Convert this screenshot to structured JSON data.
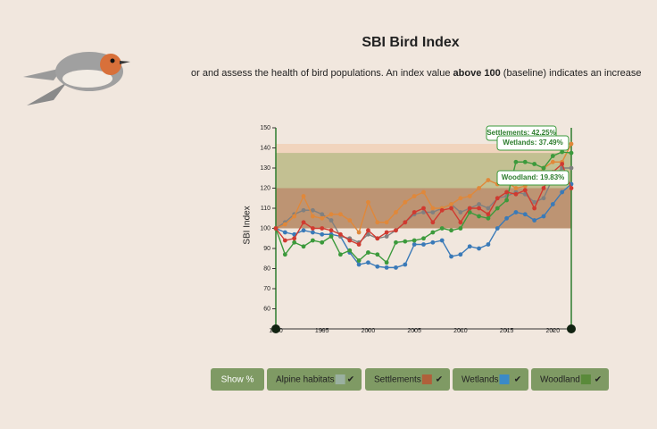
{
  "chart_data": {
    "type": "line",
    "title": "SBI Bird Index",
    "intro": {
      "before": "or and assess the health of bird populations. An index value ",
      "bold": "above 100",
      "after": " (baseline) indicates an increase in th"
    },
    "ylabel": "SBI Index",
    "x": [
      1990,
      1991,
      1992,
      1993,
      1994,
      1995,
      1996,
      1997,
      1998,
      1999,
      2000,
      2001,
      2002,
      2003,
      2004,
      2005,
      2006,
      2007,
      2008,
      2009,
      2010,
      2011,
      2012,
      2013,
      2014,
      2015,
      2016,
      2017,
      2018,
      2019,
      2020,
      2021,
      2022
    ],
    "xlim": [
      1990,
      2022
    ],
    "xticks": [
      1990,
      1995,
      2000,
      2005,
      2010,
      2015,
      2020
    ],
    "ylim": [
      50,
      150
    ],
    "yticks": [
      60,
      70,
      80,
      90,
      100,
      110,
      120,
      130,
      140,
      150
    ],
    "baseline": 100,
    "series": [
      {
        "color": "#3a7ab8",
        "values": [
          100,
          98,
          97,
          99,
          98,
          97,
          97,
          96,
          88,
          82,
          83,
          81,
          80.5,
          80.5,
          82,
          92,
          92,
          93,
          94,
          86,
          87,
          91,
          90,
          92,
          100,
          105,
          108,
          107,
          104,
          106,
          112,
          118,
          122
        ]
      },
      {
        "name": "Alpine habitats",
        "color": "#808080",
        "values": [
          100,
          103,
          107,
          109,
          109,
          107,
          104,
          96,
          95,
          93,
          97,
          95,
          96,
          99,
          103,
          107,
          108,
          108,
          110,
          112,
          108,
          110,
          112,
          110,
          115,
          116,
          118,
          117,
          113,
          115,
          125,
          130,
          130
        ]
      },
      {
        "name": "Settlements",
        "color": "#e0883a",
        "band": true,
        "values": [
          100,
          102,
          106,
          116,
          106,
          105,
          107,
          107,
          104,
          98,
          113,
          103,
          103,
          108,
          113,
          116,
          118,
          110,
          110,
          112,
          115,
          116,
          120,
          124,
          122,
          123,
          120,
          121,
          125,
          130,
          133,
          133,
          142
        ]
      },
      {
        "name": "Wetlands",
        "color": "#3c9a3c",
        "band": true,
        "values": [
          100,
          87,
          93,
          91,
          94,
          93,
          96,
          87,
          89,
          84,
          88,
          87,
          83,
          93,
          93.5,
          94,
          95,
          98,
          100,
          99,
          100,
          108,
          106,
          105,
          110,
          114,
          133,
          133,
          132,
          130,
          136,
          138,
          137.5
        ]
      },
      {
        "name": "Woodland",
        "color": "#d03a30",
        "band": true,
        "values": [
          100,
          94,
          95,
          103,
          100,
          100,
          99,
          97,
          94,
          92,
          99,
          95,
          98,
          99,
          103,
          108,
          110,
          103,
          109,
          110,
          103,
          110,
          110,
          107,
          115,
          118,
          117,
          119,
          110,
          120,
          128,
          132,
          120
        ]
      }
    ],
    "annotations": [
      "Settlements: 42.25%",
      "Wetlands: 37.49%",
      "Woodland: 19.83%"
    ],
    "show_percent": "Show %",
    "check": "✔"
  }
}
